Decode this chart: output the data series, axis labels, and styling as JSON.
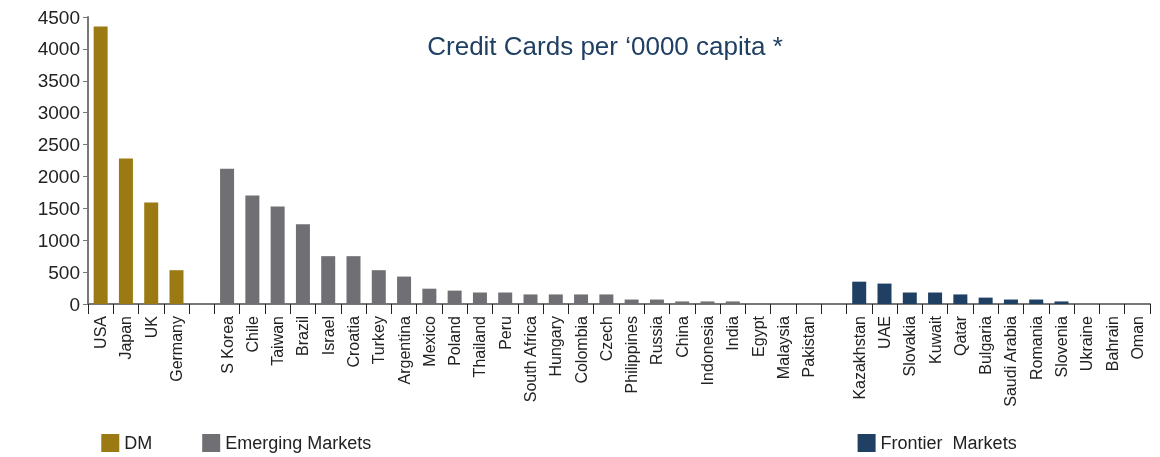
{
  "chart_data": {
    "type": "bar",
    "title": "Credit Cards per ‘0000 capita *",
    "categories": [
      "USA",
      "Japan",
      "UK",
      "Germany",
      null,
      "S Korea",
      "Chile",
      "Taiwan",
      "Brazil",
      "Israel",
      "Croatia",
      "Turkey",
      "Argentina",
      "Mexico",
      "Poland",
      "Thailand",
      "Peru",
      "South Africa",
      "Hungary",
      "Colombia",
      "Czech",
      "Philippines",
      "Russia",
      "China",
      "Indonesia",
      "India",
      "Egypt",
      "Malaysia",
      "Pakistan",
      null,
      "Kazakhstan",
      "UAE",
      "Slovakia",
      "Kuwait",
      "Qatar",
      "Bulgaria",
      "Saudi Arabia",
      "Romania",
      "Slovenia",
      "Ukraine",
      "Bahrain",
      "Oman"
    ],
    "series": [
      {
        "name": "DM",
        "color": "#9c7a13",
        "values": [
          4350,
          2280,
          1590,
          530,
          null,
          null,
          null,
          null,
          null,
          null,
          null,
          null,
          null,
          null,
          null,
          null,
          null,
          null,
          null,
          null,
          null,
          null,
          null,
          null,
          null,
          null,
          null,
          null,
          null,
          null,
          null,
          null,
          null,
          null,
          null,
          null,
          null,
          null,
          null,
          null,
          null,
          null
        ]
      },
      {
        "name": "Emerging Markets",
        "color": "#707074",
        "values": [
          null,
          null,
          null,
          null,
          null,
          2120,
          1700,
          1530,
          1250,
          750,
          750,
          530,
          430,
          240,
          210,
          180,
          180,
          150,
          150,
          150,
          150,
          70,
          70,
          40,
          40,
          40,
          0,
          0,
          0,
          null,
          null,
          null,
          null,
          null,
          null,
          null,
          null,
          null,
          null,
          null,
          null,
          null
        ]
      },
      {
        "name": "Frontier  Markets",
        "color": "#1f3f63",
        "values": [
          null,
          null,
          null,
          null,
          null,
          null,
          null,
          null,
          null,
          null,
          null,
          null,
          null,
          null,
          null,
          null,
          null,
          null,
          null,
          null,
          null,
          null,
          null,
          null,
          null,
          null,
          null,
          null,
          null,
          null,
          350,
          320,
          180,
          180,
          150,
          100,
          70,
          70,
          40,
          0,
          0,
          0
        ]
      }
    ],
    "ylim": [
      0,
      4500
    ],
    "yticks": [
      0,
      500,
      1000,
      1500,
      2000,
      2500,
      3000,
      3500,
      4000,
      4500
    ],
    "grid": false,
    "legend": "bottom"
  }
}
